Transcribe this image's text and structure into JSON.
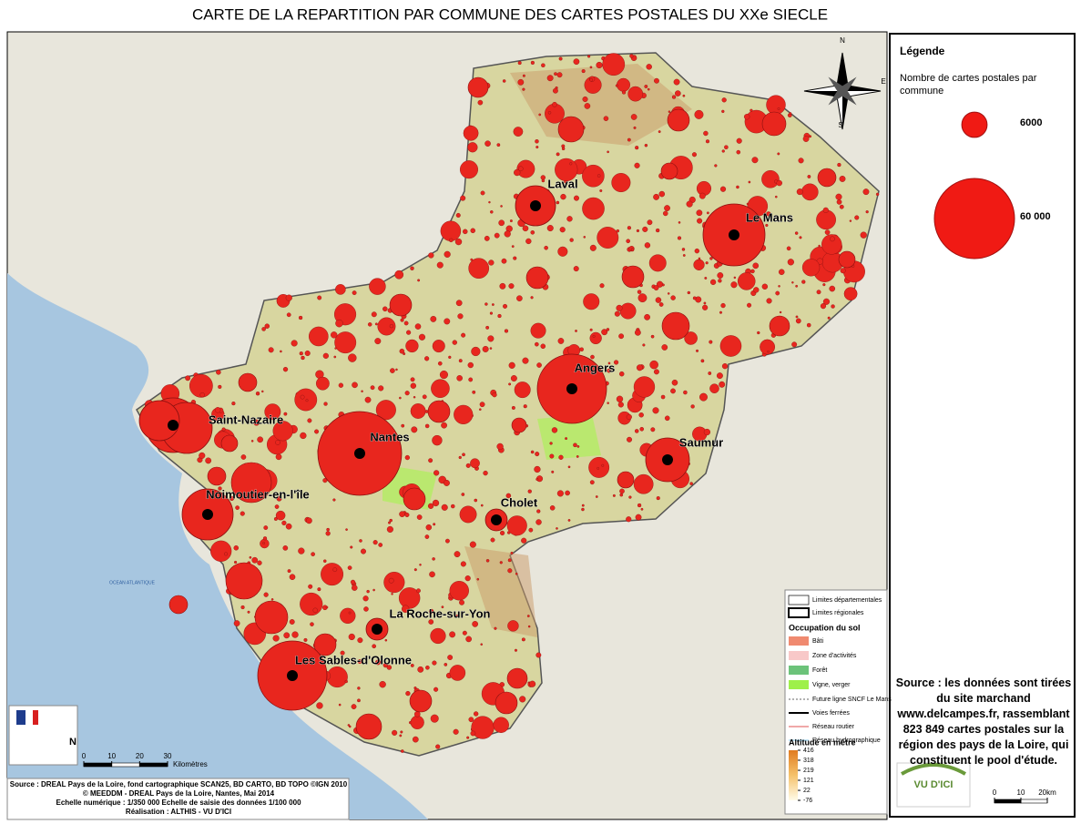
{
  "title": "CARTE DE LA REPARTITION PAR COMMUNE DES CARTES POSTALES DU XXe SIECLE",
  "compass": [
    "N",
    "E",
    "S"
  ],
  "sea_label": "OCEAN ATLANTIQUE",
  "cities": [
    "Laval",
    "Le Mans",
    "Angers",
    "Saint-Nazaire",
    "Nantes",
    "Saumur",
    "Noimoutier-en-l'île",
    "Cholet",
    "La Roche-sur-Yon",
    "Les Sables-d'Olonne"
  ],
  "legend": {
    "heading": "Légende",
    "subtitle": "Nombre de cartes postales par commune",
    "sizes": [
      {
        "value": 6000,
        "label": "6000"
      },
      {
        "value": 60000,
        "label": "60 000"
      }
    ]
  },
  "source_note": "Source :  les données sont tirées du site marchand www.delcampes.fr, rassemblant 823 849  cartes postales sur la région des pays de la Loire, qui constituent le pool d'étude.",
  "logo": "VU D'ICI",
  "map_legend": {
    "boundaries": [
      "Limites départementales",
      "Limites régionales"
    ],
    "land_use_title": "Occupation du sol",
    "land_use": [
      "Bâti",
      "Zone d'activités",
      "Forêt",
      "Vigne, verger"
    ],
    "networks": [
      "Future ligne SNCF Le Mans",
      "Voies ferrées",
      "Réseau routier",
      "Réseau hydrographique"
    ],
    "altitude_title": "Altitude en mètre",
    "altitude_ticks": [
      416,
      318,
      219,
      121,
      22,
      -76
    ]
  },
  "scale": {
    "north": "N",
    "ticks": [
      0,
      10,
      20,
      30
    ],
    "unit": "Kilomètres"
  },
  "scale2": {
    "ticks": [
      0,
      10,
      {
        "value": 20,
        "label": "20km"
      }
    ]
  },
  "credits": [
    "Source : DREAL Pays de la Loire, fond cartographique SCAN25, BD CARTO, BD TOPO ©IGN 2010",
    "© MEEDDM - DREAL Pays de la Loire, Nantes, Mai 2014",
    "Echelle numérique : 1/350 000 Echelle de saisie des données 1/100 000",
    "Réalisation : ALTHIS - VU D'ICI"
  ]
}
